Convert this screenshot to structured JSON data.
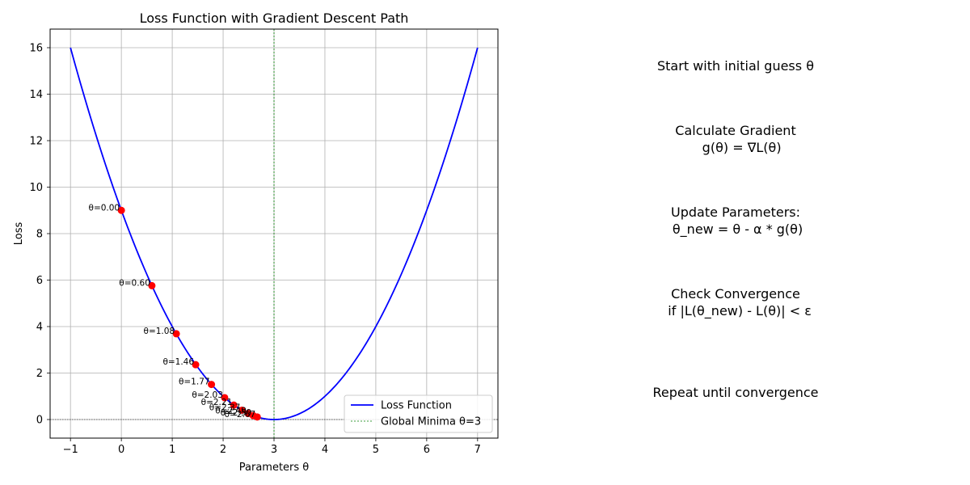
{
  "chart_data": {
    "type": "line",
    "title": "Loss Function with Gradient Descent Path",
    "xlabel": "Parameters θ",
    "ylabel": "Loss",
    "xlim": [
      -1.4,
      7.4
    ],
    "ylim": [
      -0.8,
      16.8
    ],
    "xticks": [
      -1,
      0,
      1,
      2,
      3,
      4,
      5,
      6,
      7
    ],
    "yticks": [
      0,
      2,
      4,
      6,
      8,
      10,
      12,
      14,
      16
    ],
    "grid": true,
    "legend_position": "lower-right",
    "loss_curve": {
      "name": "Loss Function",
      "formula": "(θ - 3)^2",
      "x_range": [
        -1,
        7
      ],
      "color": "#0000ff"
    },
    "minimum_line": {
      "name": "Global Minima θ=3",
      "x": 3,
      "color": "#008000"
    },
    "zero_line": {
      "y": 0,
      "color": "#000000"
    },
    "path": {
      "color": "#ff0000",
      "points": [
        {
          "x": 0.0,
          "y": 9.0,
          "label": "θ=0.00"
        },
        {
          "x": 0.6,
          "y": 5.76,
          "label": "θ=0.60"
        },
        {
          "x": 1.08,
          "y": 3.69,
          "label": "θ=1.08"
        },
        {
          "x": 1.46,
          "y": 2.36,
          "label": "θ=1.46"
        },
        {
          "x": 1.77,
          "y": 1.51,
          "label": "θ=1.77"
        },
        {
          "x": 2.03,
          "y": 0.94,
          "label": "θ=2.03"
        },
        {
          "x": 2.21,
          "y": 0.62,
          "label": "θ=2.21"
        },
        {
          "x": 2.37,
          "y": 0.4,
          "label": "θ=2.37"
        },
        {
          "x": 2.49,
          "y": 0.26,
          "label": "θ=2.49"
        },
        {
          "x": 2.59,
          "y": 0.17,
          "label": "θ=2.59"
        },
        {
          "x": 2.67,
          "y": 0.11,
          "label": "θ=2.67"
        }
      ]
    }
  },
  "steps": [
    "Start with initial guess θ",
    "Calculate Gradient\n   g(θ) = ∇L(θ)",
    "Update Parameters:\n θ_new = θ - α * g(θ)",
    "Check Convergence\n  if |L(θ_new) - L(θ)| < ε",
    "Repeat until convergence"
  ]
}
